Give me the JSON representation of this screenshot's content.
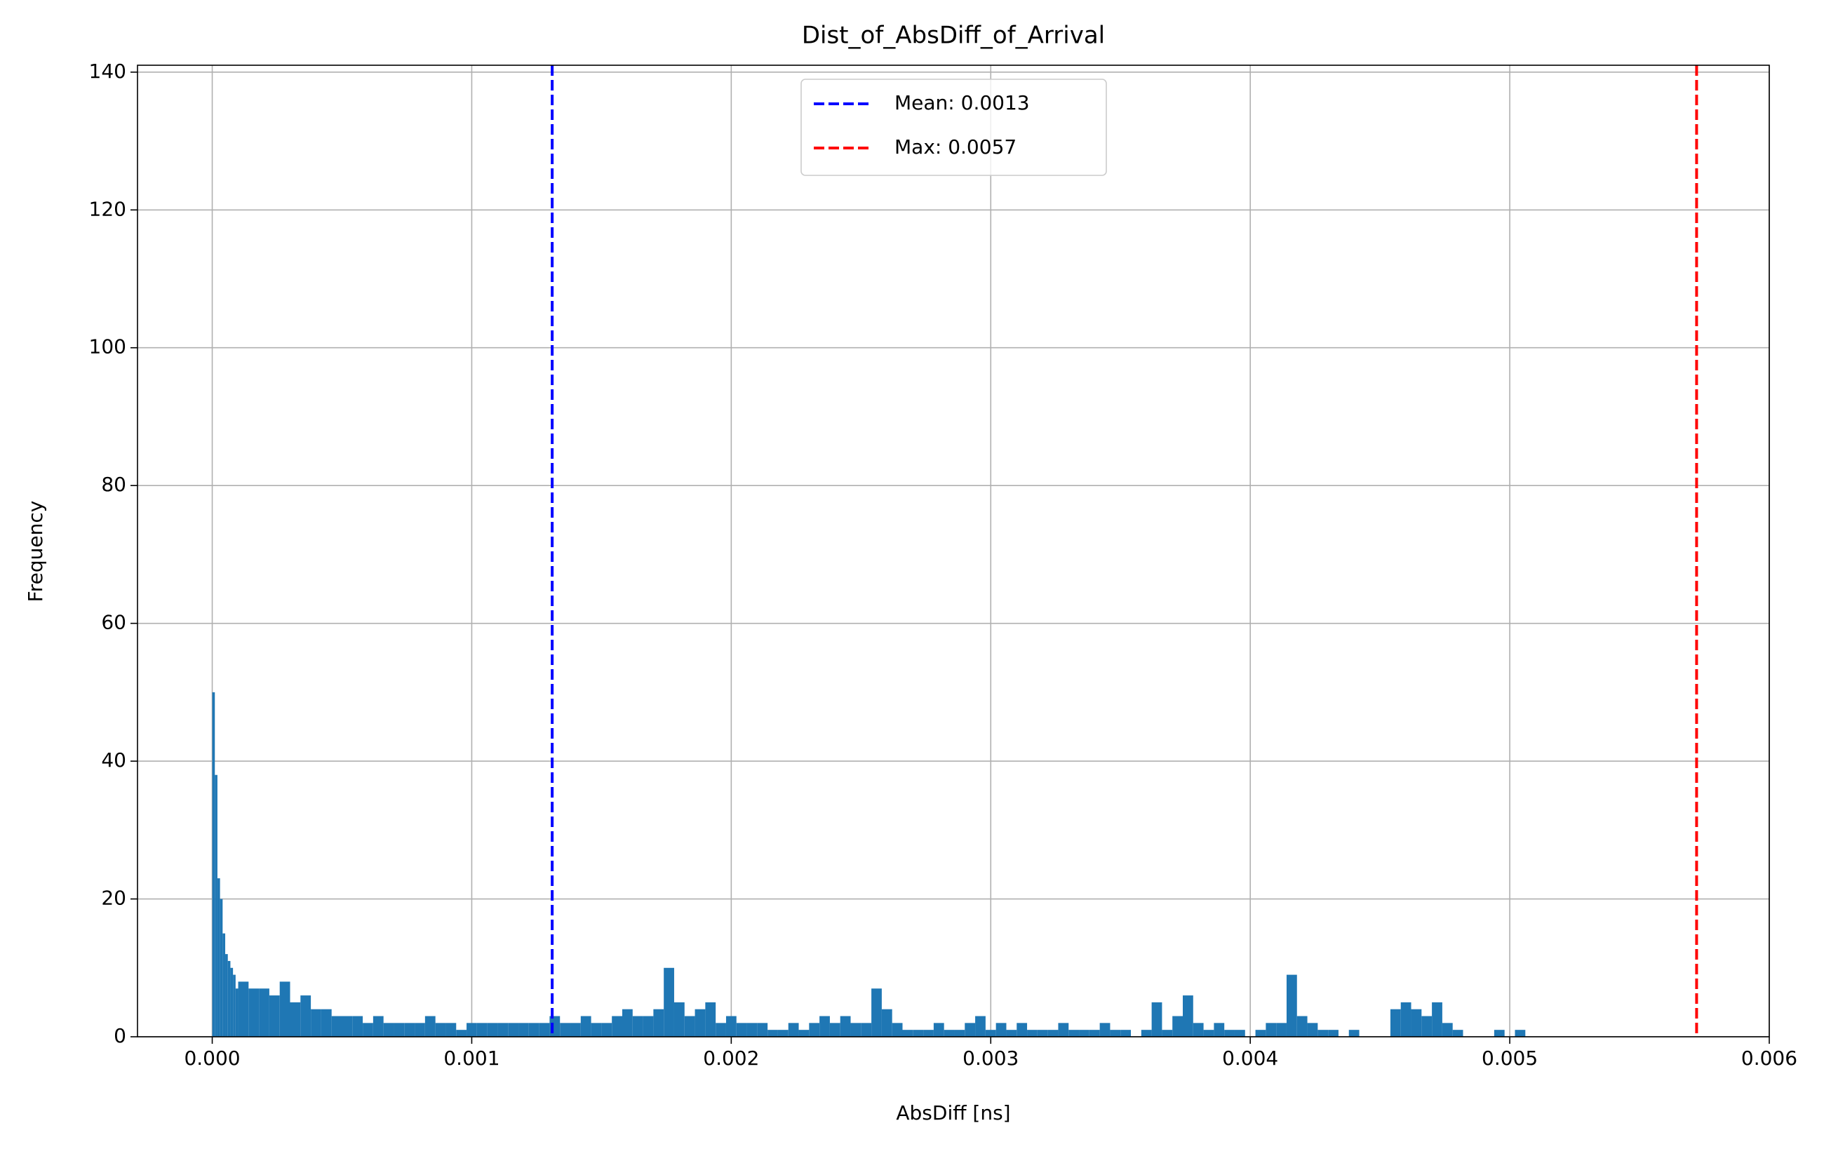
{
  "chart_data": {
    "type": "histogram",
    "title": "Dist_of_AbsDiff_of_Arrival",
    "x_label": "AbsDiff [ns]",
    "y_label": "Frequency",
    "color": "#1f77b4",
    "grid": true,
    "legend": "upper center",
    "bins": [
      0,
      1e-05,
      2e-05,
      3e-05,
      4e-05,
      5e-05,
      6e-05,
      7e-05,
      8e-05,
      9e-05,
      0.0001,
      0.00014,
      0.00018,
      0.00022,
      0.00026,
      0.0003,
      0.00034,
      0.00038,
      0.00042,
      0.00046,
      0.0005,
      0.00054,
      0.00058,
      0.00062,
      0.00066,
      0.0007,
      0.00074,
      0.00078,
      0.00082,
      0.00086,
      0.0009,
      0.00094,
      0.00098,
      0.00102,
      0.00106,
      0.0011,
      0.00114,
      0.00118,
      0.00122,
      0.00126,
      0.0013,
      0.00134,
      0.00138,
      0.00142,
      0.00146,
      0.0015,
      0.00154,
      0.00158,
      0.00162,
      0.00166,
      0.0017,
      0.00174,
      0.00178,
      0.00182,
      0.00186,
      0.0019,
      0.00194,
      0.00198,
      0.00202,
      0.00206,
      0.0021,
      0.00214,
      0.00218,
      0.00222,
      0.00226,
      0.0023,
      0.00234,
      0.00238,
      0.00242,
      0.00246,
      0.0025,
      0.00254,
      0.00258,
      0.00262,
      0.00266,
      0.0027,
      0.00274,
      0.00278,
      0.00282,
      0.00286,
      0.0029,
      0.00294,
      0.00298,
      0.00302,
      0.00306,
      0.0031,
      0.00314,
      0.00318,
      0.00322,
      0.00326,
      0.0033,
      0.00334,
      0.00338,
      0.00342,
      0.00346,
      0.0035,
      0.00354,
      0.00358,
      0.00362,
      0.00366,
      0.0037,
      0.00374,
      0.00378,
      0.00382,
      0.00386,
      0.0039,
      0.00394,
      0.00398,
      0.00402,
      0.00406,
      0.0041,
      0.00414,
      0.00418,
      0.00422,
      0.00426,
      0.0043,
      0.00434,
      0.00438,
      0.00442,
      0.00446,
      0.0045,
      0.00454,
      0.00458,
      0.00462,
      0.00466,
      0.0047,
      0.00474,
      0.00478,
      0.00482,
      0.00486,
      0.0049,
      0.00494,
      0.00498,
      0.00502,
      0.00506,
      0.0051
    ],
    "counts": [
      50,
      38,
      23,
      20,
      15,
      12,
      11,
      10,
      9,
      7,
      8,
      7,
      7,
      6,
      8,
      5,
      6,
      4,
      4,
      3,
      3,
      3,
      2,
      3,
      2,
      2,
      2,
      2,
      3,
      2,
      2,
      1,
      2,
      2,
      2,
      2,
      2,
      2,
      2,
      2,
      3,
      2,
      2,
      3,
      2,
      2,
      3,
      4,
      3,
      3,
      4,
      10,
      5,
      3,
      4,
      5,
      2,
      3,
      2,
      2,
      2,
      1,
      1,
      2,
      1,
      2,
      3,
      2,
      3,
      2,
      2,
      7,
      4,
      2,
      1,
      1,
      1,
      2,
      1,
      1,
      2,
      3,
      1,
      2,
      1,
      2,
      1,
      1,
      1,
      2,
      1,
      1,
      1,
      2,
      1,
      1,
      0,
      1,
      5,
      1,
      3,
      6,
      2,
      1,
      2,
      1,
      1,
      0,
      1,
      2,
      2,
      9,
      3,
      2,
      1,
      1,
      0,
      1,
      0,
      0,
      0,
      4,
      5,
      4,
      3,
      5,
      2,
      1,
      0,
      0,
      0,
      1,
      0,
      1,
      0
    ],
    "vlines": [
      {
        "name": "Mean: 0.0013",
        "value": 0.00131,
        "color": "#0000ff"
      },
      {
        "name": "Max: 0.0057",
        "value": 0.00572,
        "color": "#ff0000"
      }
    ],
    "xlim": [
      -0.000288,
      0.006
    ],
    "xticks": [
      {
        "value": 0,
        "label": "0.000"
      },
      {
        "value": 0.001,
        "label": "0.001"
      },
      {
        "value": 0.002,
        "label": "0.002"
      },
      {
        "value": 0.003,
        "label": "0.003"
      },
      {
        "value": 0.004,
        "label": "0.004"
      },
      {
        "value": 0.005,
        "label": "0.005"
      },
      {
        "value": 0.006,
        "label": "0.006"
      }
    ],
    "ylim": [
      0,
      141
    ],
    "yticks": [
      0,
      20,
      40,
      60,
      80,
      100,
      120,
      140
    ]
  }
}
